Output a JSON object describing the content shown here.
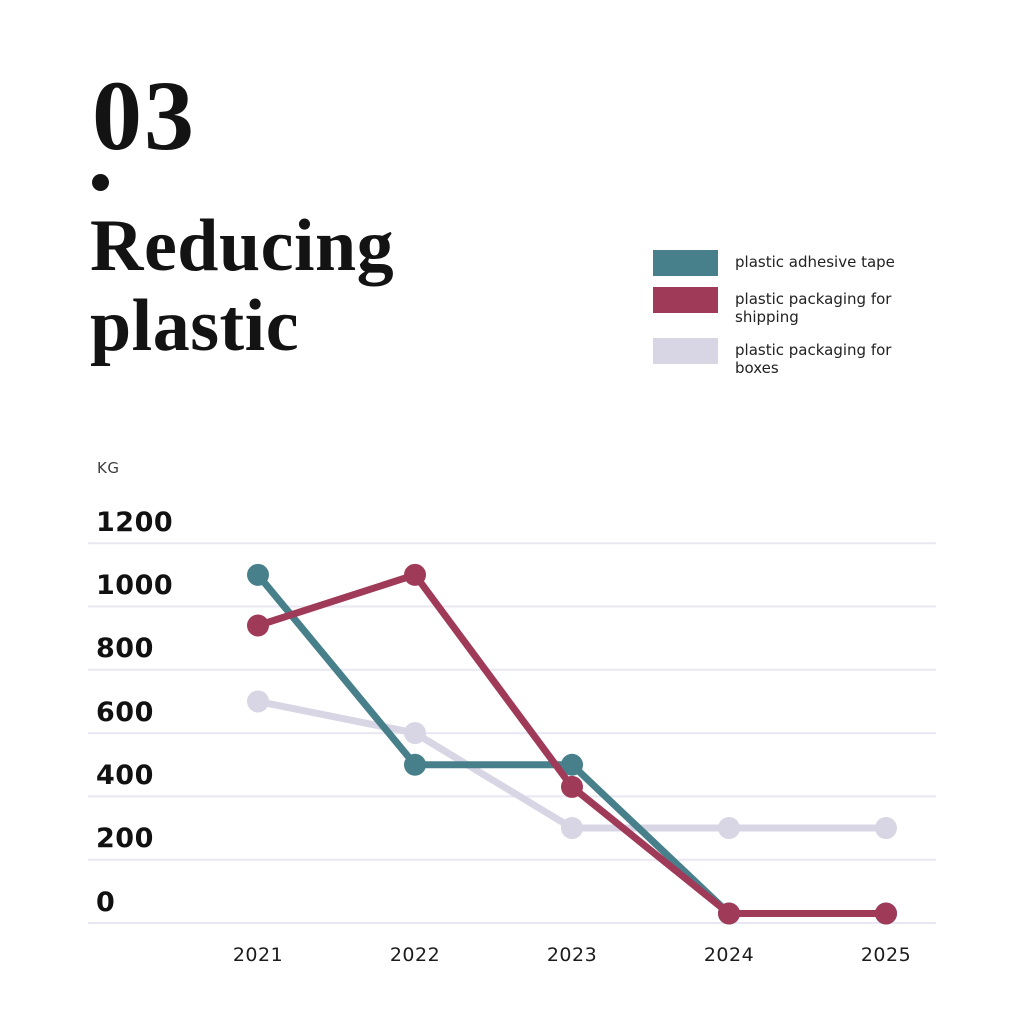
{
  "title": {
    "number": "03",
    "number_period": ".",
    "heading": "Reducing plastic"
  },
  "chart_data": {
    "type": "line",
    "title": "Reducing plastic",
    "xlabel": "",
    "ylabel": "KG",
    "categories": [
      "2021",
      "2022",
      "2023",
      "2024",
      "2025"
    ],
    "y_ticks": [
      1200,
      1000,
      800,
      600,
      400,
      200,
      0
    ],
    "ylim": [
      0,
      1200
    ],
    "grid": "horizontal",
    "gridline_color": "#e9e7f1",
    "background_color": "#ffffff",
    "text_color": "#131313",
    "legend_position": "top-right",
    "series": [
      {
        "name": "plastic adhesive tape",
        "color": "#47808A",
        "values": [
          1100,
          500,
          500,
          30,
          30
        ]
      },
      {
        "name": "plastic packaging for shipping",
        "color": "#A03A59",
        "values": [
          940,
          1100,
          430,
          30,
          30
        ]
      },
      {
        "name": "plastic packaging for boxes",
        "color": "#D8D5E5",
        "values": [
          700,
          600,
          300,
          300,
          300
        ]
      }
    ]
  }
}
